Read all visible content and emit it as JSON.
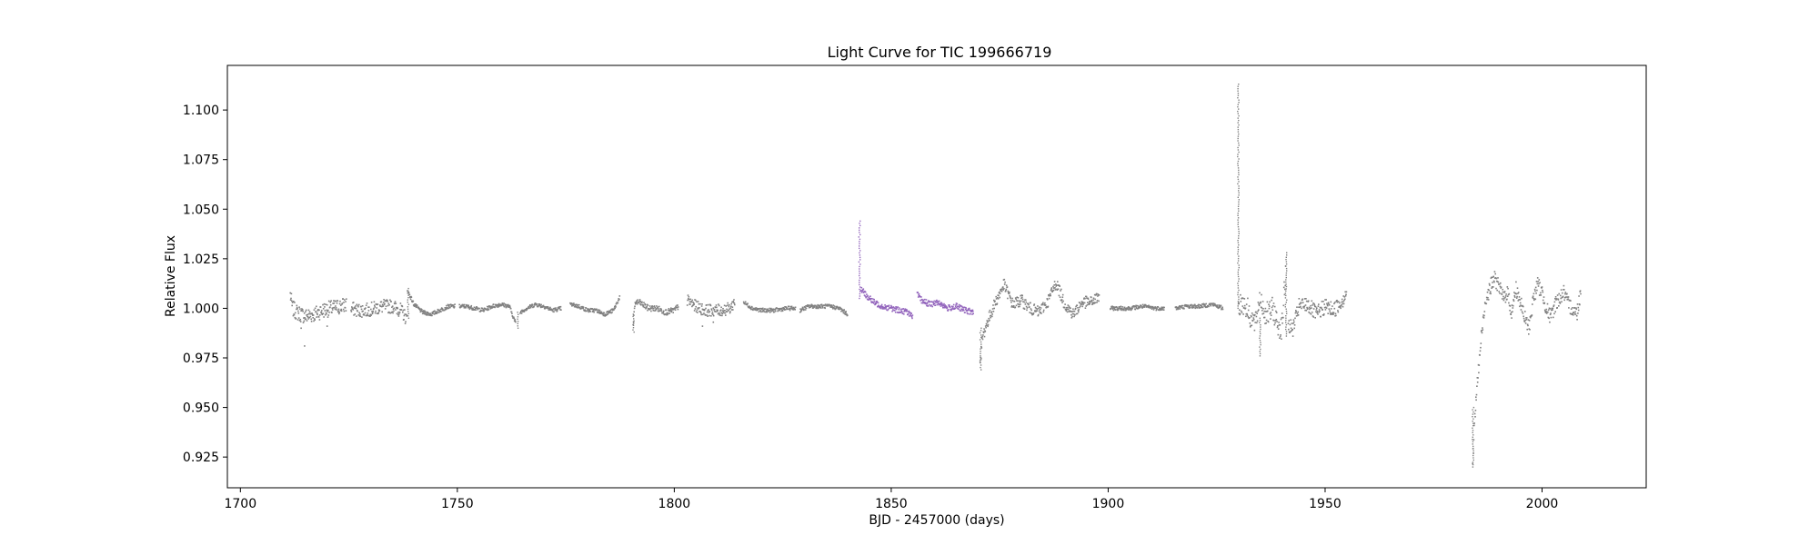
{
  "chart_data": {
    "type": "scatter",
    "title": "Light Curve for TIC 199666719",
    "xlabel": "BJD - 2457000 (days)",
    "ylabel": "Relative Flux",
    "xlim": [
      1697,
      2024
    ],
    "ylim": [
      0.9095,
      1.1225
    ],
    "xticks": [
      1700,
      1750,
      1800,
      1850,
      1900,
      1950,
      2000
    ],
    "yticks": [
      0.925,
      0.95,
      0.975,
      1.0,
      1.025,
      1.05,
      1.075,
      1.1
    ],
    "ytick_labels": [
      "0.925",
      "0.950",
      "0.975",
      "1.000",
      "1.025",
      "1.050",
      "1.075",
      "1.100"
    ],
    "grid": false,
    "colors": {
      "gray": "#808080",
      "purple": "#9467bd"
    },
    "series": [
      {
        "color": "#808080",
        "segments": [
          {
            "x": [
              1711.5,
              1712,
              1713,
              1715,
              1717,
              1719,
              1721,
              1723,
              1724.5
            ],
            "y": [
              1.007,
              1.0,
              0.998,
              0.996,
              0.997,
              0.999,
              1.0,
              1.001,
              1.002
            ],
            "spread": 0.004
          },
          {
            "x": [
              1725.5,
              1727,
              1729,
              1731,
              1733,
              1735,
              1737,
              1738.5
            ],
            "y": [
              1.0,
              0.999,
              0.999,
              1.0,
              1.001,
              1.001,
              0.999,
              0.994
            ],
            "spread": 0.0035
          },
          {
            "x": [
              1738.5,
              1740,
              1742,
              1744,
              1746,
              1748,
              1749.5
            ],
            "y": [
              1.009,
              1.002,
              0.998,
              0.997,
              0.999,
              1.001,
              1.001
            ],
            "spread": 0.001
          },
          {
            "x": [
              1750.5,
              1752,
              1754,
              1756,
              1758,
              1760,
              1762,
              1763.5
            ],
            "y": [
              1.001,
              1.001,
              1.0,
              0.999,
              1.001,
              1.002,
              1.001,
              0.992
            ],
            "spread": 0.001
          },
          {
            "x": [
              1764.5,
              1766,
              1768,
              1770,
              1772,
              1774
            ],
            "y": [
              0.998,
              1.0,
              1.002,
              1.001,
              0.999,
              1.0
            ],
            "spread": 0.001
          },
          {
            "x": [
              1776,
              1778,
              1780,
              1782,
              1784,
              1786,
              1787.5
            ],
            "y": [
              1.002,
              1.001,
              0.999,
              0.999,
              0.997,
              0.999,
              1.006
            ],
            "spread": 0.001
          },
          {
            "x": [
              1790.5,
              1791,
              1792,
              1794,
              1796,
              1798,
              1800,
              1801
            ],
            "y": [
              0.991,
              1.003,
              1.003,
              1.0,
              1.0,
              0.998,
              0.999,
              1.001
            ],
            "spread": 0.0015
          },
          {
            "x": [
              1803,
              1805,
              1807,
              1809,
              1811,
              1813,
              1814
            ],
            "y": [
              1.004,
              1.001,
              0.999,
              0.999,
              0.999,
              1.0,
              1.004
            ],
            "spread": 0.003
          },
          {
            "x": [
              1816,
              1818,
              1820,
              1823,
              1826,
              1828
            ],
            "y": [
              1.003,
              1.0,
              0.999,
              0.999,
              1.0,
              1.0
            ],
            "spread": 0.001
          },
          {
            "x": [
              1829,
              1831,
              1833,
              1836,
              1838,
              1840
            ],
            "y": [
              0.999,
              1.001,
              1.001,
              1.001,
              1.0,
              0.997
            ],
            "spread": 0.001
          },
          {
            "x": [
              1870.5,
              1871,
              1872,
              1874,
              1876,
              1878,
              1880,
              1882,
              1884,
              1886,
              1888,
              1890,
              1892,
              1894,
              1896,
              1898
            ],
            "y": [
              0.971,
              0.985,
              0.992,
              1.003,
              1.012,
              1.002,
              1.004,
              1.0,
              0.998,
              1.003,
              1.013,
              1.002,
              0.997,
              1.003,
              1.003,
              1.006
            ],
            "spread": 0.003
          },
          {
            "x": [
              1900.5,
              1902,
              1905,
              1908,
              1911,
              1913
            ],
            "y": [
              1.0,
              1.0,
              1.0,
              1.001,
              1.0,
              1.0
            ],
            "spread": 0.001
          },
          {
            "x": [
              1915.5,
              1918,
              1921,
              1924,
              1926.5
            ],
            "y": [
              1.0,
              1.001,
              1.001,
              1.002,
              1.0
            ],
            "spread": 0.001
          },
          {
            "x": [
              1930,
              1931,
              1932,
              1933,
              1934,
              1935,
              1936,
              1937,
              1938,
              1939,
              1940,
              1941
            ],
            "y": [
              1.001,
              1.003,
              1.0,
              0.995,
              0.992,
              1.006,
              0.998,
              0.997,
              1.0,
              0.992,
              0.99,
              1.02
            ],
            "spread": 0.006
          },
          {
            "x": [
              1941.5,
              1942.5,
              1944,
              1946,
              1948,
              1950,
              1952,
              1954,
              1955
            ],
            "y": [
              0.992,
              0.989,
              1.001,
              1.002,
              0.997,
              1.001,
              0.999,
              1.004,
              1.009
            ],
            "spread": 0.004
          },
          {
            "x": [
              1984,
              1984.5,
              1985,
              1986,
              1987,
              1988,
              1989,
              1990,
              1991,
              1992,
              1993,
              1994,
              1995,
              1996,
              1997,
              1998,
              1999,
              2000,
              2001,
              2002,
              2003,
              2004,
              2005,
              2006,
              2007,
              2008,
              2009
            ],
            "y": [
              0.922,
              0.945,
              0.96,
              0.985,
              1.005,
              1.01,
              1.015,
              1.012,
              1.005,
              1.008,
              0.998,
              1.01,
              1.003,
              0.995,
              0.99,
              1.005,
              1.012,
              1.008,
              1.0,
              0.995,
              1.002,
              1.005,
              1.008,
              1.002,
              1.0,
              0.997,
              1.01
            ],
            "spread": 0.004
          }
        ],
        "spikes": [
          {
            "x": 1930.0,
            "from": 1.0,
            "to": 1.113
          },
          {
            "x": 1941.0,
            "from": 0.986,
            "to": 1.028
          },
          {
            "x": 1870.6,
            "from": 0.969,
            "to": 0.99
          },
          {
            "x": 1984.1,
            "from": 0.92,
            "to": 0.95
          },
          {
            "x": 1935.0,
            "from": 0.976,
            "to": 0.995
          },
          {
            "x": 1790.6,
            "from": 0.988,
            "to": 0.997
          },
          {
            "x": 1764.0,
            "from": 0.99,
            "to": 0.998
          },
          {
            "x": 1738.7,
            "from": 0.995,
            "to": 1.01
          }
        ],
        "outliers": [
          {
            "x": 1714.8,
            "y": 0.981
          },
          {
            "x": 1714.0,
            "y": 0.99
          },
          {
            "x": 1720.0,
            "y": 0.991
          },
          {
            "x": 1806.5,
            "y": 0.991
          },
          {
            "x": 1809.0,
            "y": 0.993
          }
        ]
      },
      {
        "color": "#9467bd",
        "segments": [
          {
            "x": [
              1843,
              1844,
              1846,
              1848,
              1850,
              1852,
              1854,
              1855
            ],
            "y": [
              1.01,
              1.007,
              1.003,
              1.001,
              1.0,
              0.999,
              0.998,
              0.995
            ],
            "spread": 0.0015
          },
          {
            "x": [
              1856,
              1857,
              1859,
              1861,
              1863,
              1865,
              1867,
              1869
            ],
            "y": [
              1.007,
              1.004,
              1.002,
              1.003,
              1.0,
              1.001,
              0.999,
              0.998
            ],
            "spread": 0.0015
          }
        ],
        "spikes": [
          {
            "x": 1842.7,
            "from": 1.005,
            "to": 1.044
          }
        ],
        "outliers": []
      }
    ]
  }
}
